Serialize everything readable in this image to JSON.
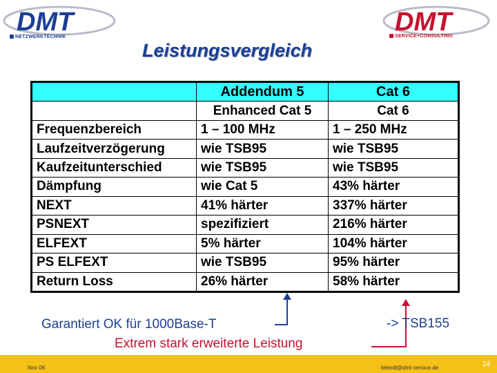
{
  "logos": {
    "left": {
      "text": "DMT",
      "subtitle": "NETZWERKTECHNIK",
      "color": "#1c3f94"
    },
    "right": {
      "text": "DMT",
      "subtitle": "SERVICE+CONSULTING",
      "color": "#c8102e"
    }
  },
  "title": "Leistungsvergleich",
  "table": {
    "header": [
      "",
      "Addendum 5",
      "Cat 6"
    ],
    "subheader": [
      "",
      "Enhanced Cat 5",
      "Cat 6"
    ],
    "rows": [
      [
        "Frequenzbereich",
        "1 – 100 MHz",
        "1 – 250 MHz"
      ],
      [
        "Laufzeitverzögerung",
        "wie TSB95",
        "wie TSB95"
      ],
      [
        "Kaufzeitunterschied",
        "wie TSB95",
        "wie TSB95"
      ],
      [
        "Dämpfung",
        "wie Cat 5",
        "43% härter"
      ],
      [
        "NEXT",
        "41% härter",
        "337% härter"
      ],
      [
        "PSNEXT",
        "spezifiziert",
        "216% härter"
      ],
      [
        "ELFEXT",
        "5% härter",
        "104% härter"
      ],
      [
        "PS ELFEXT",
        "wie TSB95",
        "95% härter"
      ],
      [
        "Return Loss",
        "26% härter",
        "58% härter"
      ]
    ],
    "header_color": "#33ffff"
  },
  "notes": {
    "guaranteed": "Garantiert OK für 1000Base-T",
    "extended": "Extrem stark erweiterte Leistung",
    "tsb": "-> TSB155"
  },
  "footer": {
    "date": "Nov 06",
    "email": "kleindl@dmt-service.de",
    "page": "24",
    "color": "#f5c116"
  }
}
